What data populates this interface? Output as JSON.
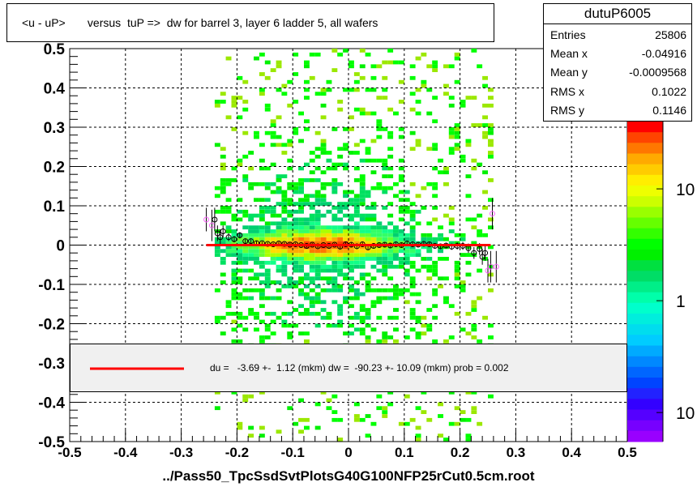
{
  "title": "<u - uP>       versus  tuP =>  dw for barrel 3, layer 6 ladder 5, all wafers",
  "x_axis_title": "../Pass50_TpcSsdSvtPlotsG40G100NFP25rCut0.5cm.root",
  "stats": {
    "name": "dutuP6005",
    "rows": [
      {
        "key": "Entries",
        "value": "25806"
      },
      {
        "key": "Mean x",
        "value": "-0.04916"
      },
      {
        "key": "Mean y",
        "value": "-0.0009568"
      },
      {
        "key": "RMS x",
        "value": "0.1022"
      },
      {
        "key": "RMS y",
        "value": "0.1146"
      }
    ]
  },
  "fit_label": "du =   -3.69 +-  1.12 (mkm) dw =  -90.23 +- 10.09 (mkm) prob = 0.002",
  "colors": {
    "fit_line": "#ff0000",
    "profile_marker_black": "#000000",
    "profile_marker_pink": "#ff66ff",
    "fit_box_fill": "#f0f0f0"
  },
  "chart_data": {
    "type": "heatmap",
    "xlim": [
      -0.5,
      0.5
    ],
    "ylim": [
      -0.5,
      0.5
    ],
    "x_ticks": [
      "-0.5",
      "-0.4",
      "-0.3",
      "-0.2",
      "-0.1",
      "0",
      "0.1",
      "0.2",
      "0.3",
      "0.4",
      "0.5"
    ],
    "y_ticks": [
      "-0.5",
      "-0.4",
      "-0.3",
      "-0.2",
      "-0.1",
      "0",
      "0.1",
      "0.2",
      "0.3",
      "0.4",
      "0.5"
    ],
    "x_tick_values": [
      -0.5,
      -0.4,
      -0.3,
      -0.2,
      -0.1,
      0,
      0.1,
      0.2,
      0.3,
      0.4,
      0.5
    ],
    "y_tick_values": [
      -0.5,
      -0.4,
      -0.3,
      -0.2,
      -0.1,
      0,
      0.1,
      0.2,
      0.3,
      0.4,
      0.5
    ],
    "grid": true,
    "z_scale": "log",
    "palette_labels": [
      {
        "text": "10",
        "z": 10
      },
      {
        "text": "1",
        "z": 1
      },
      {
        "text": "10",
        "z": 0.1
      }
    ],
    "fit_line": {
      "x": [
        -0.255,
        0.255
      ],
      "y": [
        0.0,
        0.0
      ]
    },
    "profile_points": [
      {
        "x": -0.255,
        "y": 0.065,
        "err": 0.03
      },
      {
        "x": -0.245,
        "y": 0.05,
        "err": 0.04
      },
      {
        "x": -0.24,
        "y": 0.065,
        "err": 0.03
      },
      {
        "x": -0.235,
        "y": 0.03,
        "err": 0.02
      },
      {
        "x": -0.23,
        "y": 0.02,
        "err": 0.02
      },
      {
        "x": -0.225,
        "y": 0.035,
        "err": 0.015
      },
      {
        "x": -0.215,
        "y": 0.02,
        "err": 0.01
      },
      {
        "x": -0.205,
        "y": 0.015,
        "err": 0.008
      },
      {
        "x": -0.195,
        "y": 0.025,
        "err": 0.008
      },
      {
        "x": -0.185,
        "y": 0.01,
        "err": 0.006
      },
      {
        "x": -0.175,
        "y": 0.01,
        "err": 0.005
      },
      {
        "x": -0.165,
        "y": 0.005,
        "err": 0.005
      },
      {
        "x": -0.155,
        "y": 0.005,
        "err": 0.004
      },
      {
        "x": -0.145,
        "y": 0.003,
        "err": 0.004
      },
      {
        "x": -0.135,
        "y": 0.002,
        "err": 0.004
      },
      {
        "x": -0.125,
        "y": 0.004,
        "err": 0.004
      },
      {
        "x": -0.115,
        "y": 0.003,
        "err": 0.004
      },
      {
        "x": -0.105,
        "y": 0.001,
        "err": 0.004
      },
      {
        "x": -0.095,
        "y": 0.002,
        "err": 0.004
      },
      {
        "x": -0.085,
        "y": 0.0,
        "err": 0.004
      },
      {
        "x": -0.075,
        "y": -0.002,
        "err": 0.004
      },
      {
        "x": -0.065,
        "y": 0.001,
        "err": 0.004
      },
      {
        "x": -0.055,
        "y": -0.003,
        "err": 0.004
      },
      {
        "x": -0.045,
        "y": 0.0,
        "err": 0.004
      },
      {
        "x": -0.035,
        "y": -0.002,
        "err": 0.004
      },
      {
        "x": -0.025,
        "y": 0.001,
        "err": 0.004
      },
      {
        "x": -0.015,
        "y": -0.004,
        "err": 0.005
      },
      {
        "x": -0.005,
        "y": 0.002,
        "err": 0.005
      },
      {
        "x": 0.005,
        "y": 0.001,
        "err": 0.005
      },
      {
        "x": 0.015,
        "y": -0.003,
        "err": 0.005
      },
      {
        "x": 0.025,
        "y": 0.002,
        "err": 0.005
      },
      {
        "x": 0.035,
        "y": -0.006,
        "err": 0.005
      },
      {
        "x": 0.045,
        "y": -0.002,
        "err": 0.005
      },
      {
        "x": 0.055,
        "y": 0.0,
        "err": 0.005
      },
      {
        "x": 0.065,
        "y": 0.001,
        "err": 0.005
      },
      {
        "x": 0.075,
        "y": -0.001,
        "err": 0.005
      },
      {
        "x": 0.085,
        "y": 0.002,
        "err": 0.005
      },
      {
        "x": 0.095,
        "y": 0.0,
        "err": 0.005
      },
      {
        "x": 0.105,
        "y": 0.004,
        "err": 0.005
      },
      {
        "x": 0.115,
        "y": 0.002,
        "err": 0.006
      },
      {
        "x": 0.125,
        "y": 0.001,
        "err": 0.006
      },
      {
        "x": 0.135,
        "y": 0.003,
        "err": 0.006
      },
      {
        "x": 0.145,
        "y": 0.002,
        "err": 0.006
      },
      {
        "x": 0.155,
        "y": -0.002,
        "err": 0.006
      },
      {
        "x": 0.165,
        "y": -0.003,
        "err": 0.007
      },
      {
        "x": 0.175,
        "y": -0.001,
        "err": 0.007
      },
      {
        "x": 0.185,
        "y": -0.004,
        "err": 0.008
      },
      {
        "x": 0.195,
        "y": -0.002,
        "err": 0.009
      },
      {
        "x": 0.205,
        "y": -0.002,
        "err": 0.01
      },
      {
        "x": 0.215,
        "y": -0.008,
        "err": 0.012
      },
      {
        "x": 0.225,
        "y": -0.02,
        "err": 0.015
      },
      {
        "x": 0.235,
        "y": -0.01,
        "err": 0.015
      },
      {
        "x": 0.24,
        "y": -0.03,
        "err": 0.02
      },
      {
        "x": 0.245,
        "y": -0.02,
        "err": 0.02
      },
      {
        "x": 0.25,
        "y": -0.065,
        "err": 0.03
      },
      {
        "x": 0.255,
        "y": -0.055,
        "err": 0.04
      },
      {
        "x": 0.258,
        "y": 0.08,
        "err": 0.04
      },
      {
        "x": 0.265,
        "y": -0.055,
        "err": 0.04
      }
    ]
  }
}
